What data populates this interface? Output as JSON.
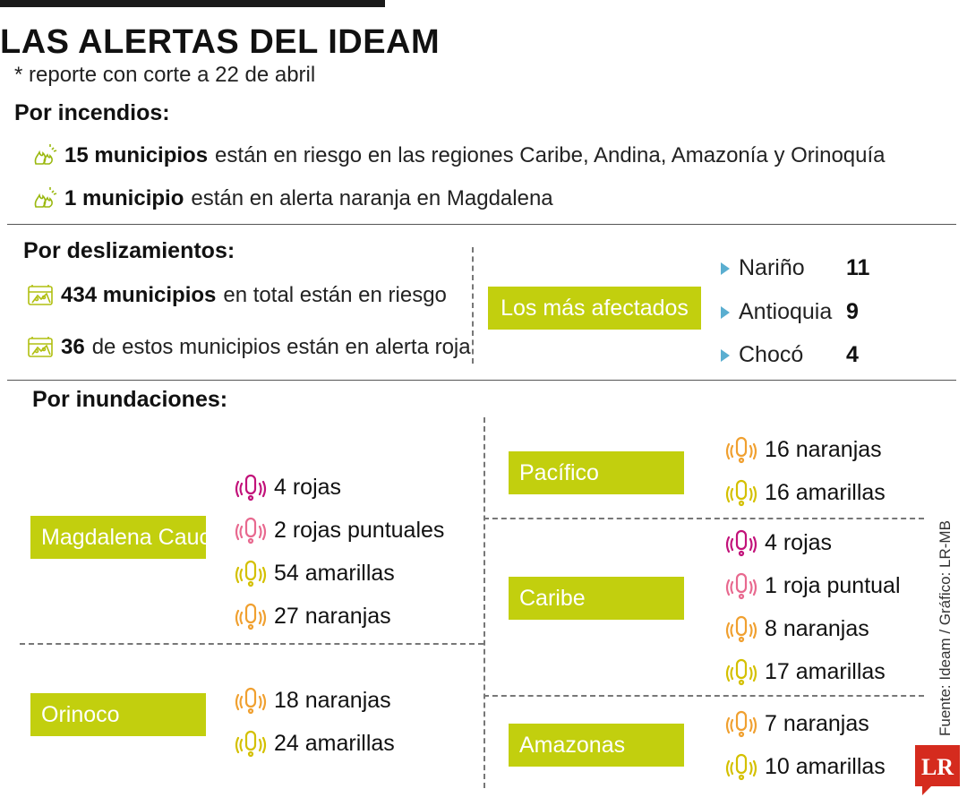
{
  "header": {
    "title": "LAS ALERTAS DEL IDEAM",
    "subtitle": "* reporte con corte a 22 de abril"
  },
  "incendios": {
    "heading": "Por incendios:",
    "items": [
      {
        "bold": "15 municipios",
        "rest": "están en riesgo en las regiones Caribe, Andina, Amazonía y Orinoquía"
      },
      {
        "bold": "1 municipio",
        "rest": "están en alerta naranja en Magdalena"
      }
    ]
  },
  "deslizamientos": {
    "heading": "Por deslizamientos:",
    "items": [
      {
        "bold": "434 municipios",
        "rest": "en total están en riesgo"
      },
      {
        "bold": "36",
        "rest": "de estos municipios están en alerta roja"
      }
    ],
    "affected_label": "Los más afectados",
    "affected": [
      {
        "name": "Nariño",
        "value": "11"
      },
      {
        "name": "Antioquia",
        "value": "9"
      },
      {
        "name": "Chocó",
        "value": "4"
      }
    ]
  },
  "inundaciones": {
    "heading": "Por inundaciones:",
    "regions": {
      "magdalena_cauca": {
        "name": "Magdalena Cauca",
        "alerts": [
          {
            "text": "4 rojas",
            "level": "roja"
          },
          {
            "text": "2 rojas puntuales",
            "level": "roja-puntual"
          },
          {
            "text": "54 amarillas",
            "level": "amarilla"
          },
          {
            "text": "27 naranjas",
            "level": "naranja"
          }
        ]
      },
      "orinoco": {
        "name": "Orinoco",
        "alerts": [
          {
            "text": "18 naranjas",
            "level": "naranja"
          },
          {
            "text": "24 amarillas",
            "level": "amarilla"
          }
        ]
      },
      "pacifico": {
        "name": "Pacífico",
        "alerts": [
          {
            "text": "16 naranjas",
            "level": "naranja"
          },
          {
            "text": "16 amarillas",
            "level": "amarilla"
          }
        ]
      },
      "caribe": {
        "name": "Caribe",
        "alerts": [
          {
            "text": "4 rojas",
            "level": "roja"
          },
          {
            "text": "1 roja puntual",
            "level": "roja-puntual"
          },
          {
            "text": "8 naranjas",
            "level": "naranja"
          },
          {
            "text": "17 amarillas",
            "level": "amarilla"
          }
        ]
      },
      "amazonas": {
        "name": "Amazonas",
        "alerts": [
          {
            "text": "7 naranjas",
            "level": "naranja"
          },
          {
            "text": "10 amarillas",
            "level": "amarilla"
          }
        ]
      }
    }
  },
  "colors": {
    "accent_green": "#c2cf0e",
    "roja": "#c2127a",
    "roja-puntual": "#e8698f",
    "naranja": "#f0a030",
    "amarilla": "#d4c000",
    "fire_icon": "#9ab80f",
    "slide_icon": "#b0bf10",
    "bullet": "#5aaed0",
    "logo_red": "#d52b1e"
  },
  "footer": {
    "source": "Fuente: Ideam / Gráfico: LR-MB",
    "logo": "LR"
  }
}
